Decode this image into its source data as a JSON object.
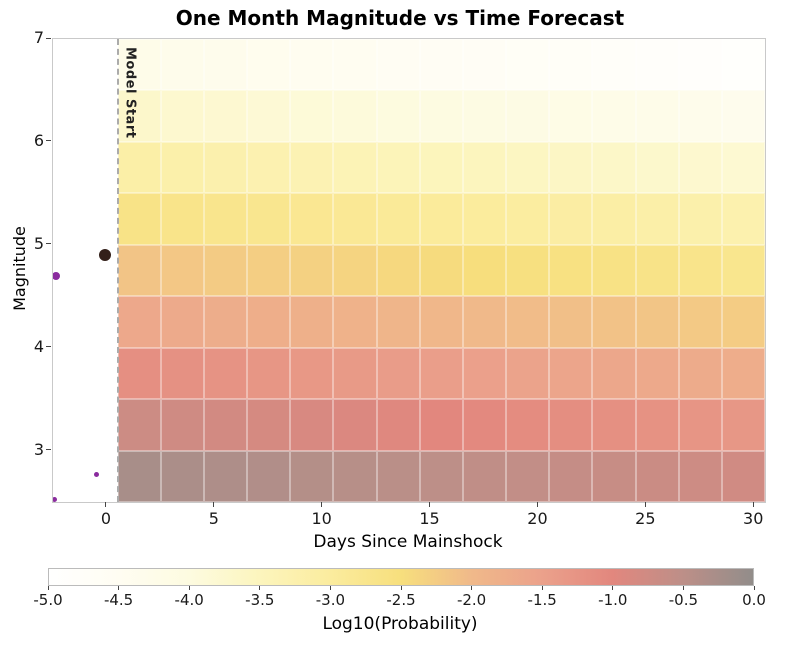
{
  "chart_data": {
    "type": "heatmap",
    "title": "One Month Magnitude vs Time Forecast",
    "xlabel": "Days Since Mainshock",
    "ylabel": "Magnitude",
    "xlim": [
      -2.5,
      30.5
    ],
    "ylim": [
      2.5,
      7
    ],
    "x_ticks": [
      0,
      5,
      10,
      15,
      20,
      25,
      30
    ],
    "y_ticks": [
      3,
      4,
      5,
      6,
      7
    ],
    "grid": false,
    "x_bin_edges": [
      0.5,
      2.5,
      4.5,
      6.5,
      8.5,
      10.5,
      12.5,
      14.5,
      16.5,
      18.5,
      20.5,
      22.5,
      24.5,
      26.5,
      28.5,
      30.5
    ],
    "rows": [
      {
        "mag_low": 6.5,
        "mag_high": 7.0,
        "values": [
          -4.25,
          -4.3,
          -4.34,
          -4.39,
          -4.44,
          -4.48,
          -4.53,
          -4.58,
          -4.62,
          -4.67,
          -4.71,
          -4.76,
          -4.81,
          -4.85,
          -4.9
        ]
      },
      {
        "mag_low": 6.0,
        "mag_high": 6.5,
        "values": [
          -3.7,
          -3.75,
          -3.79,
          -3.84,
          -3.89,
          -3.93,
          -3.98,
          -4.03,
          -4.07,
          -4.12,
          -4.16,
          -4.21,
          -4.26,
          -4.3,
          -4.35
        ]
      },
      {
        "mag_low": 5.5,
        "mag_high": 6.0,
        "values": [
          -3.15,
          -3.2,
          -3.24,
          -3.29,
          -3.34,
          -3.38,
          -3.43,
          -3.48,
          -3.52,
          -3.57,
          -3.61,
          -3.66,
          -3.71,
          -3.75,
          -3.8
        ]
      },
      {
        "mag_low": 5.0,
        "mag_high": 5.5,
        "values": [
          -2.65,
          -2.69,
          -2.74,
          -2.78,
          -2.82,
          -2.86,
          -2.91,
          -2.95,
          -2.99,
          -3.04,
          -3.08,
          -3.12,
          -3.16,
          -3.21,
          -3.25
        ]
      },
      {
        "mag_low": 4.5,
        "mag_high": 5.0,
        "values": [
          -2.15,
          -2.19,
          -2.24,
          -2.28,
          -2.32,
          -2.36,
          -2.41,
          -2.45,
          -2.49,
          -2.54,
          -2.58,
          -2.62,
          -2.66,
          -2.71,
          -2.75
        ]
      },
      {
        "mag_low": 4.0,
        "mag_high": 4.5,
        "values": [
          -1.65,
          -1.69,
          -1.74,
          -1.78,
          -1.82,
          -1.86,
          -1.91,
          -1.95,
          -1.99,
          -2.04,
          -2.08,
          -2.12,
          -2.16,
          -2.21,
          -2.25
        ]
      },
      {
        "mag_low": 3.5,
        "mag_high": 4.0,
        "values": [
          -1.15,
          -1.19,
          -1.24,
          -1.28,
          -1.32,
          -1.36,
          -1.41,
          -1.45,
          -1.49,
          -1.54,
          -1.58,
          -1.62,
          -1.66,
          -1.71,
          -1.75
        ]
      },
      {
        "mag_low": 3.0,
        "mag_high": 3.5,
        "values": [
          -0.7,
          -0.74,
          -0.79,
          -0.83,
          -0.87,
          -0.91,
          -0.96,
          -1.0,
          -1.04,
          -1.09,
          -1.13,
          -1.17,
          -1.21,
          -1.26,
          -1.3
        ]
      },
      {
        "mag_low": 2.5,
        "mag_high": 3.0,
        "values": [
          -0.25,
          -0.29,
          -0.32,
          -0.36,
          -0.39,
          -0.43,
          -0.46,
          -0.5,
          -0.54,
          -0.57,
          -0.61,
          -0.64,
          -0.68,
          -0.71,
          -0.75
        ]
      }
    ],
    "colormap_stops": [
      [
        -5.0,
        "#ffffff"
      ],
      [
        -4.5,
        "#fffdf2"
      ],
      [
        -4.0,
        "#fdfbe0"
      ],
      [
        -3.5,
        "#fcf5bd"
      ],
      [
        -3.0,
        "#fbec9e"
      ],
      [
        -2.5,
        "#f7df7d"
      ],
      [
        -2.0,
        "#f0b98a"
      ],
      [
        -1.5,
        "#eba18b"
      ],
      [
        -1.0,
        "#e2877e"
      ],
      [
        -0.5,
        "#bd8f88"
      ],
      [
        0.0,
        "#928d8a"
      ]
    ],
    "model_start": {
      "x": 0.5,
      "label": "Model Start"
    },
    "scatter_points": [
      {
        "name": "foreshock",
        "x": -2.35,
        "y": 4.7,
        "size": 8,
        "color": "#8a2b9e"
      },
      {
        "name": "mainshock",
        "x": -0.1,
        "y": 4.9,
        "size": 12,
        "color": "#33201a"
      },
      {
        "name": "foreshock",
        "x": -0.5,
        "y": 2.77,
        "size": 5,
        "color": "#8a2b9e"
      },
      {
        "name": "foreshock",
        "x": -2.45,
        "y": 2.52,
        "size": 5,
        "color": "#8a2b9e"
      }
    ],
    "colorbar": {
      "label": "Log10(Probability)",
      "range": [
        -5,
        0
      ],
      "ticks": [
        {
          "v": -5.0,
          "label": "-5.0"
        },
        {
          "v": -4.5,
          "label": "-4.5"
        },
        {
          "v": -4.0,
          "label": "-4.0"
        },
        {
          "v": -3.5,
          "label": "-3.5"
        },
        {
          "v": -3.0,
          "label": "-3.0"
        },
        {
          "v": -2.5,
          "label": "-2.5"
        },
        {
          "v": -2.0,
          "label": "-2.0"
        },
        {
          "v": -1.5,
          "label": "-1.5"
        },
        {
          "v": -1.0,
          "label": "-1.0"
        },
        {
          "v": -0.5,
          "label": "-0.5"
        },
        {
          "v": 0.0,
          "label": "0.0"
        }
      ]
    }
  }
}
